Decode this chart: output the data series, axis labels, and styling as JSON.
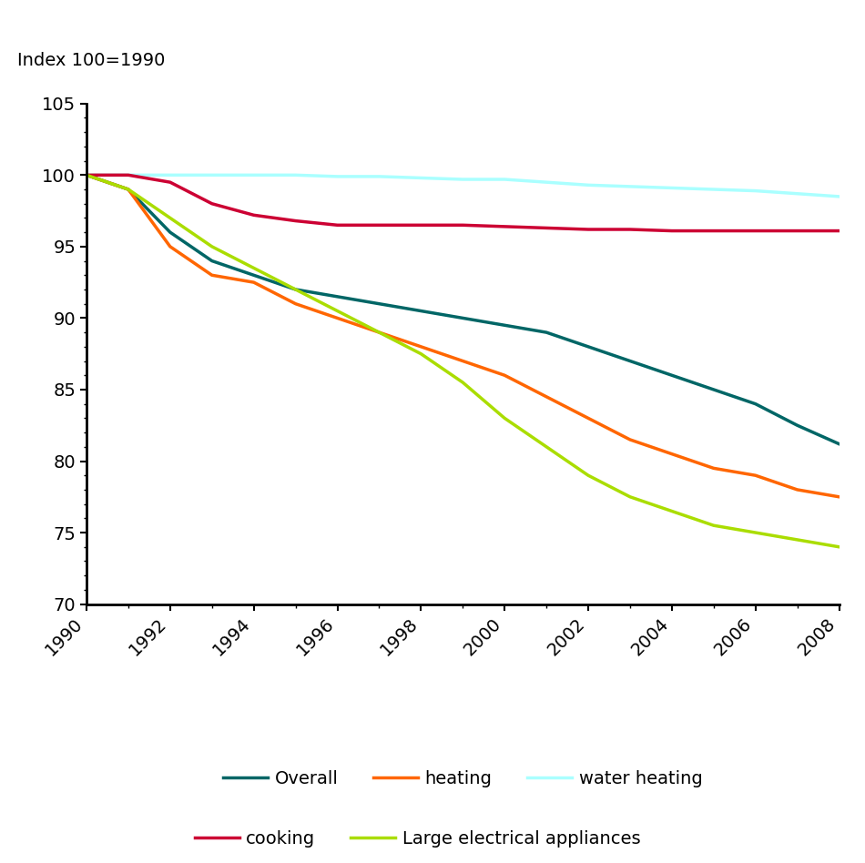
{
  "title": "Index 100=1990",
  "years": [
    1990,
    1991,
    1992,
    1993,
    1994,
    1995,
    1996,
    1997,
    1998,
    1999,
    2000,
    2001,
    2002,
    2003,
    2004,
    2005,
    2006,
    2007,
    2008
  ],
  "series": {
    "Overall": {
      "color": "#006666",
      "values": [
        100,
        99.0,
        96.0,
        94.0,
        93.0,
        92.0,
        91.5,
        91.0,
        90.5,
        90.0,
        89.5,
        89.0,
        88.0,
        87.0,
        86.0,
        85.0,
        84.0,
        82.5,
        81.2
      ]
    },
    "heating": {
      "color": "#FF6600",
      "values": [
        100,
        99.0,
        95.0,
        93.0,
        92.5,
        91.0,
        90.0,
        89.0,
        88.0,
        87.0,
        86.0,
        84.5,
        83.0,
        81.5,
        80.5,
        79.5,
        79.0,
        78.0,
        77.5
      ]
    },
    "water heating": {
      "color": "#AAFFFF",
      "values": [
        100,
        100.0,
        100.0,
        100.0,
        100.0,
        100.0,
        99.9,
        99.9,
        99.8,
        99.7,
        99.7,
        99.5,
        99.3,
        99.2,
        99.1,
        99.0,
        98.9,
        98.7,
        98.5
      ]
    },
    "cooking": {
      "color": "#CC0033",
      "values": [
        100,
        100.0,
        99.5,
        98.0,
        97.2,
        96.8,
        96.5,
        96.5,
        96.5,
        96.5,
        96.4,
        96.3,
        96.2,
        96.2,
        96.1,
        96.1,
        96.1,
        96.1,
        96.1
      ]
    },
    "Large electrical appliances": {
      "color": "#AADD00",
      "values": [
        100,
        99.0,
        97.0,
        95.0,
        93.5,
        92.0,
        90.5,
        89.0,
        87.5,
        85.5,
        83.0,
        81.0,
        79.0,
        77.5,
        76.5,
        75.5,
        75.0,
        74.5,
        74.0
      ]
    }
  },
  "ylim": [
    70,
    105
  ],
  "yticks": [
    70,
    75,
    80,
    85,
    90,
    95,
    100,
    105
  ],
  "xticks": [
    1990,
    1992,
    1994,
    1996,
    1998,
    2000,
    2002,
    2004,
    2006,
    2008
  ],
  "all_years": [
    1990,
    1991,
    1992,
    1993,
    1994,
    1995,
    1996,
    1997,
    1998,
    1999,
    2000,
    2001,
    2002,
    2003,
    2004,
    2005,
    2006,
    2007,
    2008
  ],
  "line_width": 2.5,
  "figsize": [
    9.5,
    9.48
  ],
  "dpi": 100
}
